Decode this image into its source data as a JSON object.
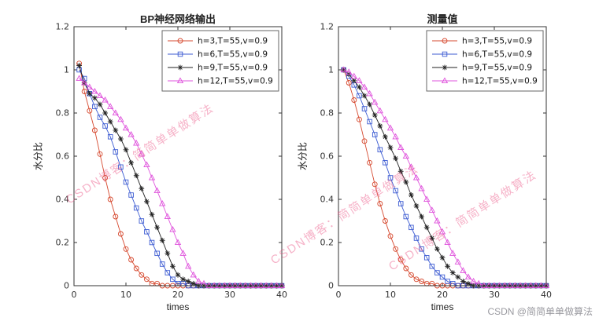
{
  "page": {
    "background": "#ffffff",
    "watermark_text": "CSDN博客：简简单单做算法",
    "credit_text": "CSDN @简简单单做算法"
  },
  "chart_data": [
    {
      "type": "line",
      "title": "BP神经网络输出",
      "xlabel": "times",
      "ylabel": "水分比",
      "xlim": [
        0,
        40
      ],
      "ylim": [
        0,
        1.2
      ],
      "xticks": [
        "0",
        "10",
        "20",
        "30",
        "40"
      ],
      "yticks": [
        "0",
        "0.2",
        "0.4",
        "0.6",
        "0.8",
        "1",
        "1.2"
      ],
      "grid": false,
      "legend_position": "northeast",
      "x": [
        1,
        2,
        3,
        4,
        5,
        6,
        7,
        8,
        9,
        10,
        11,
        12,
        13,
        14,
        15,
        16,
        17,
        18,
        19,
        20,
        21,
        22,
        23,
        24,
        25,
        26,
        27,
        28,
        29,
        30,
        31,
        32,
        33,
        34,
        35,
        36,
        37,
        38,
        39,
        40
      ],
      "series": [
        {
          "name": "h=3,T=55,v=0.9",
          "color": "#d6492f",
          "marker": "o",
          "values": [
            1.03,
            0.9,
            0.81,
            0.72,
            0.61,
            0.5,
            0.4,
            0.32,
            0.24,
            0.17,
            0.12,
            0.08,
            0.05,
            0.03,
            0.01,
            0.01,
            0,
            0,
            0,
            0,
            0,
            0,
            0,
            0,
            0,
            0,
            0,
            0,
            0,
            0,
            0,
            0,
            0,
            0,
            0,
            0,
            0,
            0,
            0,
            0
          ]
        },
        {
          "name": "h=6,T=55,v=0.9",
          "color": "#3c5bd2",
          "marker": "s",
          "values": [
            1.0,
            0.96,
            0.89,
            0.83,
            0.78,
            0.74,
            0.69,
            0.62,
            0.55,
            0.48,
            0.42,
            0.36,
            0.3,
            0.25,
            0.2,
            0.15,
            0.1,
            0.06,
            0.03,
            0.01,
            0.01,
            0,
            0,
            0,
            0,
            0,
            0,
            0,
            0,
            0,
            0,
            0,
            0,
            0,
            0,
            0,
            0,
            0,
            0,
            0
          ]
        },
        {
          "name": "h=9,T=55,v=0.9",
          "color": "#222222",
          "marker": "*",
          "values": [
            1.02,
            0.94,
            0.89,
            0.87,
            0.84,
            0.8,
            0.76,
            0.72,
            0.68,
            0.63,
            0.57,
            0.51,
            0.45,
            0.39,
            0.33,
            0.27,
            0.21,
            0.15,
            0.09,
            0.05,
            0.03,
            0.02,
            0.01,
            0,
            0,
            0,
            0,
            0,
            0,
            0,
            0,
            0,
            0,
            0,
            0,
            0,
            0,
            0,
            0,
            0
          ]
        },
        {
          "name": "h=12,T=55,v=0.9",
          "color": "#df53dc",
          "marker": "^",
          "values": [
            0.96,
            0.94,
            0.92,
            0.9,
            0.88,
            0.86,
            0.83,
            0.8,
            0.77,
            0.73,
            0.7,
            0.66,
            0.61,
            0.56,
            0.5,
            0.44,
            0.38,
            0.32,
            0.26,
            0.2,
            0.15,
            0.09,
            0.05,
            0.02,
            0.01,
            0,
            0,
            0,
            0,
            0,
            0,
            0,
            0,
            0,
            0,
            0,
            0,
            0,
            0,
            0
          ]
        }
      ]
    },
    {
      "type": "line",
      "title": "测量值",
      "xlabel": "times",
      "ylabel": "水分比",
      "xlim": [
        0,
        40
      ],
      "ylim": [
        0,
        1.2
      ],
      "xticks": [
        "0",
        "10",
        "20",
        "30",
        "40"
      ],
      "yticks": [
        "0",
        "0.2",
        "0.4",
        "0.6",
        "0.8",
        "1",
        "1.2"
      ],
      "grid": false,
      "legend_position": "northeast",
      "x": [
        1,
        2,
        3,
        4,
        5,
        6,
        7,
        8,
        9,
        10,
        11,
        12,
        13,
        14,
        15,
        16,
        17,
        18,
        19,
        20,
        21,
        22,
        23,
        24,
        25,
        26,
        27,
        28,
        29,
        30,
        31,
        32,
        33,
        34,
        35,
        36,
        37,
        38,
        39,
        40
      ],
      "series": [
        {
          "name": "h=3,T=55,v=0.9",
          "color": "#d6492f",
          "marker": "o",
          "values": [
            1.0,
            0.94,
            0.86,
            0.77,
            0.67,
            0.57,
            0.47,
            0.38,
            0.3,
            0.23,
            0.17,
            0.12,
            0.08,
            0.05,
            0.03,
            0.02,
            0.01,
            0.01,
            0,
            0,
            0,
            0,
            0,
            0,
            0,
            0,
            0,
            0,
            0,
            0,
            0,
            0,
            0,
            0,
            0,
            0,
            0,
            0,
            0,
            0
          ]
        },
        {
          "name": "h=6,T=55,v=0.9",
          "color": "#3c5bd2",
          "marker": "s",
          "values": [
            1.0,
            0.97,
            0.93,
            0.88,
            0.82,
            0.76,
            0.7,
            0.63,
            0.57,
            0.5,
            0.44,
            0.38,
            0.32,
            0.27,
            0.22,
            0.17,
            0.13,
            0.09,
            0.06,
            0.04,
            0.02,
            0.01,
            0,
            0,
            0,
            0,
            0,
            0,
            0,
            0,
            0,
            0,
            0,
            0,
            0,
            0,
            0,
            0,
            0,
            0
          ]
        },
        {
          "name": "h=9,T=55,v=0.9",
          "color": "#222222",
          "marker": "*",
          "values": [
            1.0,
            0.98,
            0.95,
            0.92,
            0.88,
            0.84,
            0.79,
            0.74,
            0.69,
            0.64,
            0.59,
            0.53,
            0.48,
            0.42,
            0.37,
            0.32,
            0.27,
            0.22,
            0.17,
            0.13,
            0.09,
            0.06,
            0.04,
            0.02,
            0.01,
            0,
            0,
            0,
            0,
            0,
            0,
            0,
            0,
            0,
            0,
            0,
            0,
            0,
            0,
            0
          ]
        },
        {
          "name": "h=12,T=55,v=0.9",
          "color": "#df53dc",
          "marker": "^",
          "values": [
            1.0,
            0.99,
            0.97,
            0.95,
            0.92,
            0.89,
            0.85,
            0.81,
            0.77,
            0.73,
            0.69,
            0.64,
            0.6,
            0.55,
            0.5,
            0.45,
            0.4,
            0.35,
            0.3,
            0.25,
            0.2,
            0.15,
            0.11,
            0.07,
            0.04,
            0.02,
            0.01,
            0,
            0,
            0,
            0,
            0,
            0,
            0,
            0,
            0,
            0,
            0,
            0,
            0
          ]
        }
      ]
    }
  ]
}
